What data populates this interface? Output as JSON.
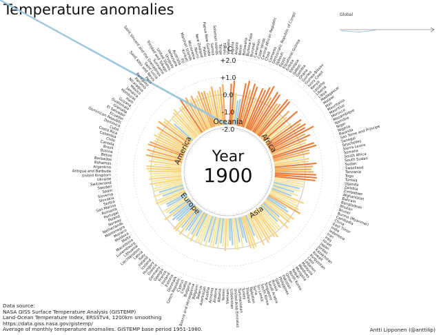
{
  "title": "Temperature anomalies",
  "global": {
    "label": "Global"
  },
  "center": {
    "label": "Year",
    "year": "1900"
  },
  "source_lines": [
    "Data source:",
    "NASA GISS Surface Temperature Analysis (GISTEMP)",
    "Land-Ocean Temperature Index, ERSSTv4, 1200km smoothing",
    "https://data.giss.nasa.gov/gistemp/",
    "Average of monthly temperature anomalies. GISTEMP base period 1951-1980."
  ],
  "credit": "Antti Lipponen (@anttilip)",
  "colors": {
    "warm": "#e8702a",
    "neutral": "#f3e39a",
    "cool": "#9cc6dc",
    "ring": "#cccccc"
  },
  "chart_data": {
    "type": "radial-bar",
    "title": "Temperature anomalies",
    "unit": "°C",
    "year": 1900,
    "ticks": [
      "+2.0",
      "+1.0",
      "0.0",
      "-1.0",
      "-2.0"
    ],
    "tick_values": [
      2,
      1,
      0,
      -1,
      -2
    ],
    "rlim": [
      -2,
      2
    ],
    "regions": [
      "Africa",
      "Asia",
      "Europe",
      "America",
      "Oceania"
    ],
    "countries": [
      "Algeria",
      "Angola",
      "Benin",
      "Botswana",
      "Burkina Faso",
      "Burundi",
      "Cameroon",
      "Cape Verde",
      "Central African Republic",
      "Chad",
      "Comoros",
      "Democratic Republic of Congo",
      "Djibouti",
      "Egypt",
      "Equatorial Guinea",
      "Eritrea",
      "Ethiopia",
      "Gabon",
      "Gambia",
      "Ghana",
      "Guinea",
      "Guinea-Bissau",
      "Ivory Coast",
      "Kenya",
      "Lesotho",
      "Liberia",
      "Libya",
      "Madagascar",
      "Malawi",
      "Mali",
      "Mauritania",
      "Mauritius",
      "Morocco",
      "Mozambique",
      "Namibia",
      "Niger",
      "Nigeria",
      "Rwanda",
      "Sao Tome and Principe",
      "Senegal",
      "Seychelles",
      "Sierra Leone",
      "Somalia",
      "South Africa",
      "South Sudan",
      "Sudan",
      "Swaziland",
      "Tanzania",
      "Togo",
      "Tunisia",
      "Uganda",
      "Zambia",
      "Zimbabwe",
      "Afghanistan",
      "Bahrain",
      "Bangladesh",
      "Bhutan",
      "Brunei",
      "Burma (Myanmar)",
      "Cambodia",
      "China",
      "East Timor",
      "India",
      "Indonesia",
      "Iran",
      "Iraq",
      "Israel",
      "Japan",
      "Jordan",
      "Kazakhstan",
      "Kuwait",
      "Kyrgyzstan",
      "Laos",
      "Lebanon",
      "Malaysia",
      "Maldives",
      "Mongolia",
      "Nepal",
      "North Korea",
      "Oman",
      "Pakistan",
      "Philippines",
      "Qatar",
      "Russia",
      "Saudi Arabia",
      "Singapore",
      "South Korea",
      "Sri Lanka",
      "Syria",
      "Tajikistan",
      "Thailand",
      "Turkey",
      "Turkmenistan",
      "United Arab Emirates",
      "Uzbekistan",
      "Vietnam",
      "Yemen",
      "Albania",
      "Andorra",
      "Armenia",
      "Austria",
      "Azerbaijan",
      "Belarus",
      "Belgium",
      "Bosnia and Herzegovina",
      "Bulgaria",
      "Croatia",
      "Cyprus",
      "Czech Republic",
      "Denmark",
      "Estonia",
      "Finland",
      "France",
      "Georgia",
      "Germany",
      "Greece",
      "Hungary",
      "Iceland",
      "Ireland",
      "Italy",
      "Latvia",
      "Liechtenstein",
      "Lithuania",
      "Luxembourg",
      "Macedonia",
      "Malta",
      "Moldova",
      "Monaco",
      "Montenegro",
      "Netherlands",
      "Norway",
      "Poland",
      "Portugal",
      "Romania",
      "San Marino",
      "Serbia",
      "Slovakia",
      "Slovenia",
      "Spain",
      "Sweden",
      "Switzerland",
      "Ukraine",
      "United Kingdom",
      "Antigua and Barbuda",
      "Argentina",
      "Bahamas",
      "Barbados",
      "Belize",
      "Bolivia",
      "Brazil",
      "Canada",
      "Chile",
      "Colombia",
      "Costa Rica",
      "Cuba",
      "Dominica",
      "Dominican Republic",
      "Ecuador",
      "El Salvador",
      "Grenada",
      "Guatemala",
      "Guyana",
      "Haiti",
      "Honduras",
      "Jamaica",
      "Mexico",
      "Nicaragua",
      "Panama",
      "Paraguay",
      "Peru",
      "Saint Kitts and Nevis",
      "Saint Lucia",
      "Saint Vincent and the Grenadines",
      "Suriname",
      "Trinidad and Tobago",
      "United States",
      "Uruguay",
      "Venezuela",
      "Australia",
      "Fiji",
      "Kiribati",
      "Marshall Islands",
      "Micronesia",
      "Nauru",
      "New Zealand",
      "Palau",
      "Papua New Guinea",
      "Samoa",
      "Solomon Islands",
      "Tonga",
      "Tuvalu",
      "Vanuatu"
    ],
    "values": [
      0.63,
      0.8,
      0.12,
      -0.31,
      -0.21,
      0.75,
      0.93,
      0.45,
      0.86,
      0.73,
      0.13,
      0.76,
      0.72,
      0.97,
      1.15,
      0.5,
      0.96,
      0.9,
      0.39,
      0.47,
      0.95,
      0.93,
      -0.02,
      0.51,
      0.17,
      0.85,
      -0.16,
      0.11,
      0.73,
      0.56,
      0.8,
      0.67,
      1.14,
      0.5,
      0.73,
      0.44,
      0.34,
      0.78,
      0.87,
      0.39,
      0.38,
      0.08,
      0.29,
      0.23,
      0.68,
      0.46,
      0.36,
      0.49,
      0.64,
      0.69,
      0.61,
      0.02,
      -0.05,
      0.03,
      -0.21,
      -0.16,
      -0.47,
      -0.18,
      -0.54,
      0.28,
      -0.1,
      0.08,
      0.16,
      0.36,
      -0.48,
      -0.28,
      0.23,
      0.1,
      0.15,
      -0.5,
      0.29,
      -0.4,
      -0.08,
      0.01,
      -0.1,
      0.31,
      0.16,
      0.08,
      0.15,
      0.29,
      -0.13,
      0.26,
      -0.13,
      -0.45,
      0.2,
      0.25,
      0.16,
      -0.21,
      -0.53,
      -0.04,
      -0.33,
      0.1,
      0.07,
      -0.2,
      -0.47,
      -0.12,
      0.13,
      -0.12,
      -0.29,
      -0.02,
      -0.22,
      0.06,
      0.01,
      -0.22,
      0.09,
      -0.2,
      0.1,
      -0.04,
      0.08,
      -0.31,
      0.11,
      -0.26,
      0.07,
      -0.37,
      -0.28,
      0.14,
      -0.25,
      0.12,
      0.11,
      -0.42,
      -0.4,
      -0.2,
      -0.38,
      0.13,
      -0.3,
      -0.16,
      0.01,
      -0.41,
      -0.43,
      -0.1,
      0.11,
      0.09,
      -0.42,
      0.07,
      -0.31,
      -0.05,
      0.01,
      -0.17,
      0.12,
      0.02,
      0.13,
      0.03,
      0.08,
      0.15,
      0.26,
      0.28,
      -0.17,
      0.17,
      0.01,
      0.37,
      0.17,
      0.39,
      0.07,
      0.44,
      0.38,
      0.18,
      0.13,
      0.32,
      0.15,
      0.13,
      0.4,
      -0.05,
      0.5,
      0.25,
      0.32,
      -0.3,
      0.04,
      0.09,
      0.17,
      0.3,
      -0.13,
      0.18,
      0.19,
      0.64,
      0.27,
      0.47,
      0.24,
      0.42,
      0.18,
      0.28,
      0.5,
      0.37,
      0.4,
      0.25,
      0.33,
      0.55,
      0.29,
      0.3,
      0.46,
      0.6
    ],
    "global_series": {
      "x": [
        1880,
        1885,
        1890,
        1895,
        1900
      ],
      "y": [
        -0.16,
        -0.25,
        -0.36,
        -0.22,
        -0.08
      ]
    }
  }
}
